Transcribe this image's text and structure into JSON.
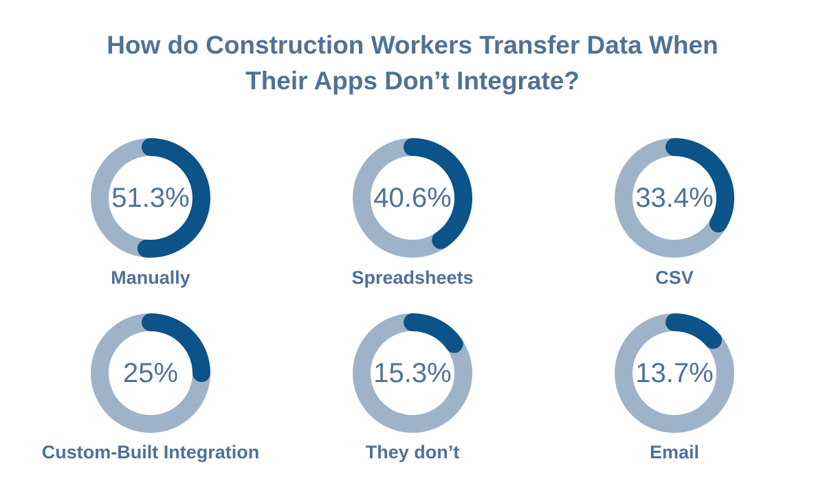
{
  "chart_data": {
    "type": "pie",
    "title": "How do Construction Workers Transfer Data When Their Apps Don’t Integrate?",
    "title_lines": [
      "How do Construction Workers Transfer Data When",
      "Their Apps Don’t Integrate?"
    ],
    "colors": {
      "track": "#9fb3c8",
      "fill": "#0b5388",
      "text": "#4f7296"
    },
    "items": [
      {
        "label": "Manually",
        "value": 51.3,
        "display": "51.3%"
      },
      {
        "label": "Spreadsheets",
        "value": 40.6,
        "display": "40.6%"
      },
      {
        "label": "CSV",
        "value": 33.4,
        "display": "33.4%"
      },
      {
        "label": "Custom-Built Integration",
        "value": 25,
        "display": "25%"
      },
      {
        "label": "They don’t",
        "value": 15.3,
        "display": "15.3%"
      },
      {
        "label": "Email",
        "value": 13.7,
        "display": "13.7%"
      }
    ]
  }
}
